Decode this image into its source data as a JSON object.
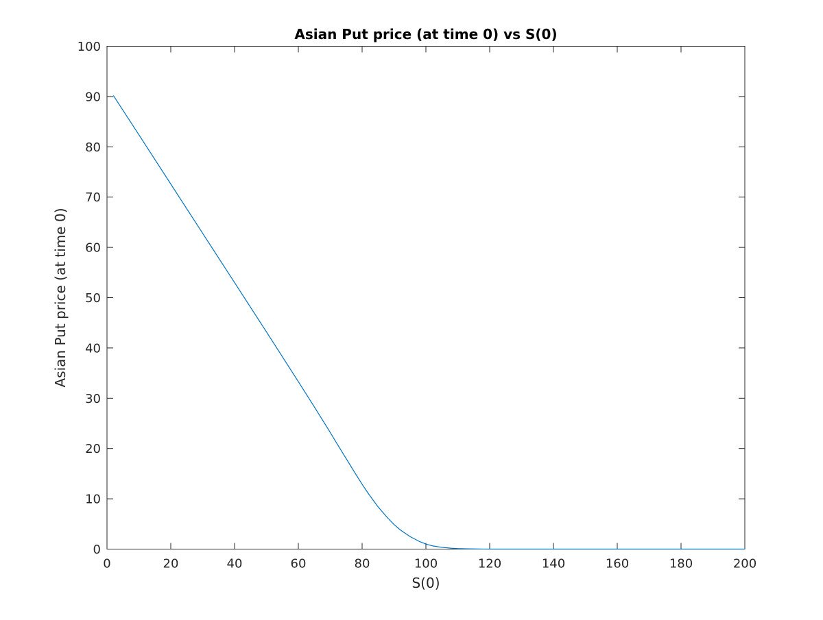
{
  "chart_data": {
    "type": "line",
    "title": "Asian Put price (at time 0) vs S(0)",
    "xlabel": "S(0)",
    "ylabel": "Asian Put price (at time 0)",
    "xlim": [
      0,
      200
    ],
    "ylim": [
      0,
      100
    ],
    "xticks": [
      0,
      20,
      40,
      60,
      80,
      100,
      120,
      140,
      160,
      180,
      200
    ],
    "yticks": [
      0,
      10,
      20,
      30,
      40,
      50,
      60,
      70,
      80,
      90,
      100
    ],
    "grid": false,
    "box": true,
    "series": [
      {
        "color": "#0072BD",
        "x": [
          2,
          10,
          20,
          30,
          40,
          50,
          60,
          65,
          70,
          72,
          75,
          78,
          80,
          82,
          85,
          88,
          90,
          92,
          95,
          98,
          100,
          102,
          105,
          108,
          110,
          113,
          115,
          118,
          120,
          130,
          140,
          150,
          160,
          170,
          180,
          190,
          200
        ],
        "y": [
          90.2,
          82.4,
          72.6,
          62.8,
          53.0,
          43.2,
          33.3,
          28.3,
          23.2,
          21.1,
          18.0,
          14.9,
          12.9,
          11.0,
          8.4,
          6.2,
          4.9,
          3.8,
          2.5,
          1.5,
          1.0,
          0.65,
          0.35,
          0.17,
          0.1,
          0.05,
          0.03,
          0.01,
          0.0,
          0.0,
          0.0,
          0.0,
          0.0,
          0.0,
          0.0,
          0.0,
          0.0
        ]
      }
    ]
  }
}
